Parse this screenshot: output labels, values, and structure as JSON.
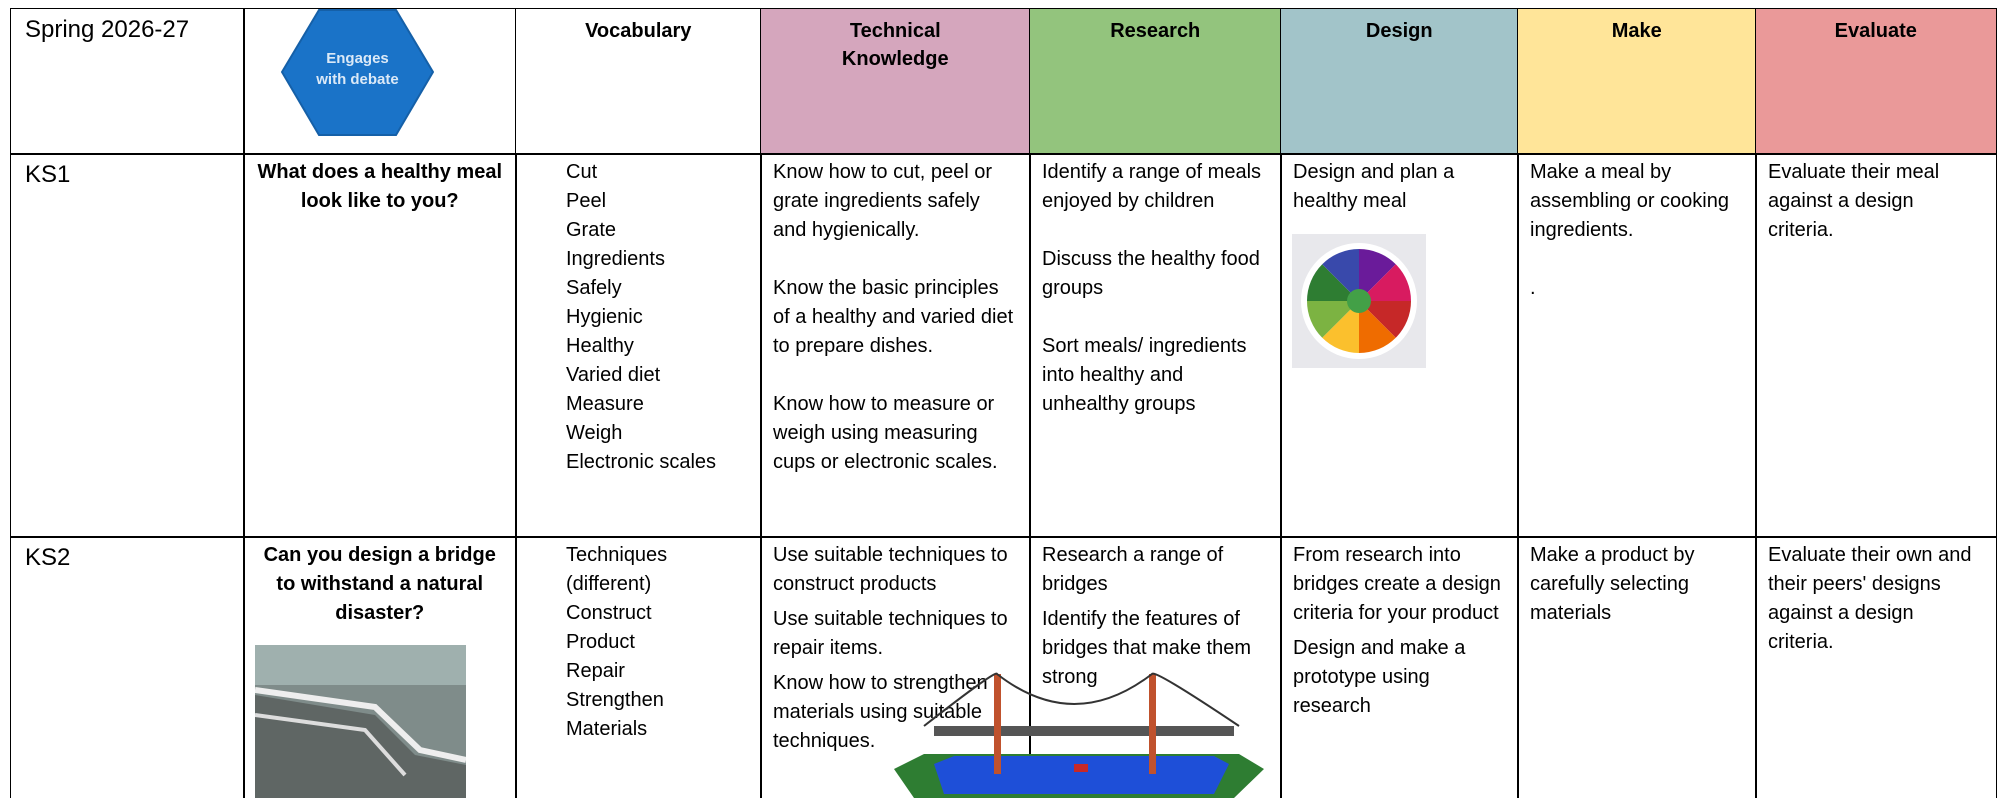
{
  "header": {
    "title": "Spring 2026-27",
    "badge": "Engages with debate",
    "columns": [
      "Vocabulary",
      "Technical Knowledge",
      "Research",
      "Design",
      "Make",
      "Evaluate"
    ]
  },
  "rows": [
    {
      "stage": "KS1",
      "question": "What does a healthy meal look like to you?",
      "vocabulary": [
        "Cut",
        "Peel",
        "Grate",
        "Ingredients",
        "Safely",
        "Hygienic",
        "Healthy",
        "Varied diet",
        "Measure",
        "Weigh",
        "Electronic scales"
      ],
      "technical_knowledge": [
        "Know how to cut, peel or grate ingredients safely and hygienically.",
        "Know the basic principles of a healthy and varied diet to prepare dishes.",
        "Know how to measure or weigh using measuring cups or electronic scales."
      ],
      "research": [
        "Identify a range of meals enjoyed by children",
        "Discuss the healthy food groups",
        "Sort meals/ ingredients into healthy and unhealthy groups"
      ],
      "design": [
        "Design and plan a healthy meal"
      ],
      "make": [
        "Make a meal by assembling or cooking ingredients.",
        "."
      ],
      "evaluate": [
        "Evaluate their meal against a design criteria."
      ]
    },
    {
      "stage": "KS2",
      "question": "Can you design a bridge to withstand a natural disaster?",
      "vocabulary": [
        "Techniques (different)",
        "Construct",
        "Product",
        "Repair",
        "Strengthen",
        "Materials"
      ],
      "technical_knowledge": [
        "Use suitable techniques to construct products",
        "Use suitable techniques to repair items.",
        "Know how to strengthen materials using suitable techniques."
      ],
      "research": [
        "Research a range of bridges",
        "Identify the features of bridges that make them strong"
      ],
      "design": [
        "From research into bridges create a design criteria for your product",
        "Design and make a prototype using research"
      ],
      "make": [
        "Make a product by carefully selecting materials"
      ],
      "evaluate": [
        "Evaluate their own and their peers' designs against a design criteria."
      ]
    }
  ]
}
